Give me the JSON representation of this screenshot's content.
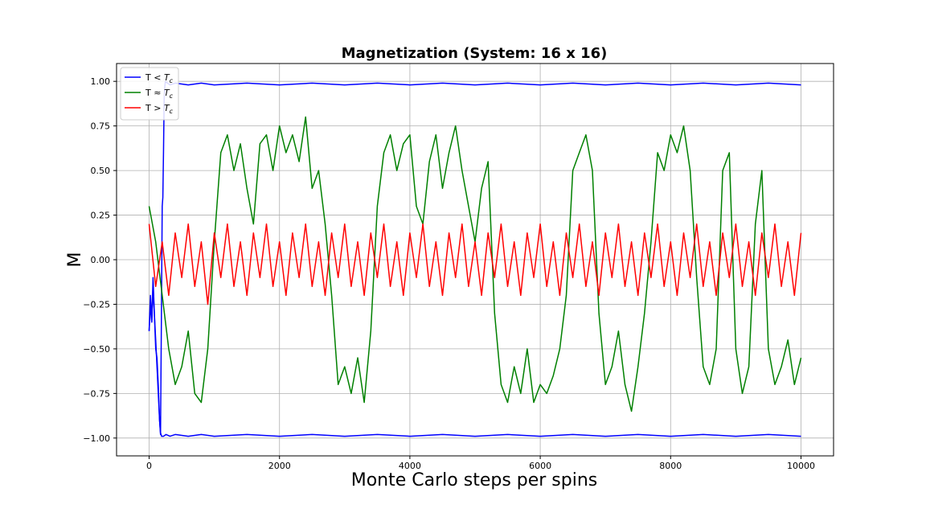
{
  "chart_data": {
    "type": "line",
    "title": "Magnetization (System: 16 x 16)",
    "xlabel": "Monte Carlo steps per spins",
    "ylabel": "M",
    "xlim": [
      -500,
      10500
    ],
    "ylim": [
      -1.1,
      1.1
    ],
    "x_ticks": [
      0,
      2000,
      4000,
      6000,
      8000,
      10000
    ],
    "x_tick_labels": [
      "0",
      "2000",
      "4000",
      "6000",
      "8000",
      "10000"
    ],
    "y_ticks": [
      -1.0,
      -0.75,
      -0.5,
      -0.25,
      0.0,
      0.25,
      0.5,
      0.75,
      1.0
    ],
    "y_tick_labels": [
      "−1.00",
      "−0.75",
      "−0.50",
      "−0.25",
      "0.00",
      "0.25",
      "0.50",
      "0.75",
      "1.00"
    ],
    "grid": true,
    "legend_position": "top-left",
    "series": [
      {
        "name": "T < Tc",
        "legend_base": "T < ",
        "legend_sub_main": "T",
        "legend_sub": "c",
        "color": "#0000ff",
        "x": [
          0,
          20,
          40,
          60,
          80,
          100,
          120,
          140,
          160,
          175,
          190,
          200,
          210,
          220,
          230,
          240,
          250,
          280,
          320,
          400,
          600,
          800,
          1000,
          1500,
          2000,
          2500,
          3000,
          3500,
          4000,
          4500,
          5000,
          5500,
          6000,
          6500,
          7000,
          7500,
          8000,
          8500,
          9000,
          9500,
          10000
        ],
        "values": [
          -0.4,
          -0.2,
          -0.35,
          -0.1,
          -0.3,
          -0.5,
          -0.55,
          -0.7,
          -0.9,
          -0.98,
          -0.2,
          0.3,
          0.35,
          0.6,
          0.9,
          0.97,
          1.0,
          0.99,
          0.98,
          0.99,
          0.98,
          0.99,
          0.98,
          0.99,
          0.98,
          0.99,
          0.98,
          0.99,
          0.98,
          0.99,
          0.98,
          0.99,
          0.98,
          0.99,
          0.98,
          0.99,
          0.98,
          0.99,
          0.98,
          0.99,
          0.98
        ]
      },
      {
        "name": "T < Tc",
        "color": "#0000ff",
        "x": [
          0,
          20,
          40,
          60,
          80,
          100,
          120,
          140,
          160,
          175,
          190,
          220,
          260,
          320,
          400,
          600,
          800,
          1000,
          1500,
          2000,
          2500,
          3000,
          3500,
          4000,
          4500,
          5000,
          5500,
          6000,
          6500,
          7000,
          7500,
          8000,
          8500,
          9000,
          9500,
          10000
        ],
        "values": [
          -0.4,
          -0.25,
          -0.35,
          -0.15,
          -0.3,
          -0.45,
          -0.6,
          -0.75,
          -0.9,
          -0.97,
          -0.99,
          -0.99,
          -0.98,
          -0.99,
          -0.98,
          -0.99,
          -0.98,
          -0.99,
          -0.98,
          -0.99,
          -0.98,
          -0.99,
          -0.98,
          -0.99,
          -0.98,
          -0.99,
          -0.98,
          -0.99,
          -0.98,
          -0.99,
          -0.98,
          -0.99,
          -0.98,
          -0.99,
          -0.98,
          -0.99
        ]
      },
      {
        "name": "T ≈ Tc",
        "legend_base": "T ≈ ",
        "legend_sub_main": "T",
        "legend_sub": "c",
        "color": "#008000",
        "x": [
          0,
          100,
          200,
          300,
          400,
          500,
          600,
          700,
          800,
          900,
          1000,
          1100,
          1200,
          1300,
          1400,
          1500,
          1600,
          1700,
          1800,
          1900,
          2000,
          2100,
          2200,
          2300,
          2400,
          2500,
          2600,
          2700,
          2800,
          2900,
          3000,
          3100,
          3200,
          3300,
          3400,
          3500,
          3600,
          3700,
          3800,
          3900,
          4000,
          4100,
          4200,
          4300,
          4400,
          4500,
          4600,
          4700,
          4800,
          4900,
          5000,
          5100,
          5200,
          5300,
          5400,
          5500,
          5600,
          5700,
          5800,
          5900,
          6000,
          6100,
          6200,
          6300,
          6400,
          6500,
          6600,
          6700,
          6800,
          6900,
          7000,
          7100,
          7200,
          7300,
          7400,
          7500,
          7600,
          7700,
          7800,
          7900,
          8000,
          8100,
          8200,
          8300,
          8400,
          8500,
          8600,
          8700,
          8800,
          8900,
          9000,
          9100,
          9200,
          9300,
          9400,
          9500,
          9600,
          9700,
          9800,
          9900,
          10000
        ],
        "values": [
          0.3,
          0.1,
          -0.2,
          -0.5,
          -0.7,
          -0.6,
          -0.4,
          -0.75,
          -0.8,
          -0.5,
          0.1,
          0.6,
          0.7,
          0.5,
          0.65,
          0.4,
          0.2,
          0.65,
          0.7,
          0.5,
          0.75,
          0.6,
          0.7,
          0.55,
          0.8,
          0.4,
          0.5,
          0.2,
          -0.2,
          -0.7,
          -0.6,
          -0.75,
          -0.55,
          -0.8,
          -0.4,
          0.3,
          0.6,
          0.7,
          0.5,
          0.65,
          0.7,
          0.3,
          0.2,
          0.55,
          0.7,
          0.4,
          0.6,
          0.75,
          0.5,
          0.3,
          0.1,
          0.4,
          0.55,
          -0.3,
          -0.7,
          -0.8,
          -0.6,
          -0.75,
          -0.5,
          -0.8,
          -0.7,
          -0.75,
          -0.65,
          -0.5,
          -0.2,
          0.5,
          0.6,
          0.7,
          0.5,
          -0.3,
          -0.7,
          -0.6,
          -0.4,
          -0.7,
          -0.85,
          -0.6,
          -0.3,
          0.1,
          0.6,
          0.5,
          0.7,
          0.6,
          0.75,
          0.5,
          -0.1,
          -0.6,
          -0.7,
          -0.5,
          0.5,
          0.6,
          -0.5,
          -0.75,
          -0.6,
          0.2,
          0.5,
          -0.5,
          -0.7,
          -0.6,
          -0.45,
          -0.7,
          -0.55
        ]
      },
      {
        "name": "T > Tc",
        "legend_base": "T > ",
        "legend_sub_main": "T",
        "legend_sub": "c",
        "color": "#ff0000",
        "x": [
          0,
          100,
          200,
          300,
          400,
          500,
          600,
          700,
          800,
          900,
          1000,
          1100,
          1200,
          1300,
          1400,
          1500,
          1600,
          1700,
          1800,
          1900,
          2000,
          2100,
          2200,
          2300,
          2400,
          2500,
          2600,
          2700,
          2800,
          2900,
          3000,
          3100,
          3200,
          3300,
          3400,
          3500,
          3600,
          3700,
          3800,
          3900,
          4000,
          4100,
          4200,
          4300,
          4400,
          4500,
          4600,
          4700,
          4800,
          4900,
          5000,
          5100,
          5200,
          5300,
          5400,
          5500,
          5600,
          5700,
          5800,
          5900,
          6000,
          6100,
          6200,
          6300,
          6400,
          6500,
          6600,
          6700,
          6800,
          6900,
          7000,
          7100,
          7200,
          7300,
          7400,
          7500,
          7600,
          7700,
          7800,
          7900,
          8000,
          8100,
          8200,
          8300,
          8400,
          8500,
          8600,
          8700,
          8800,
          8900,
          9000,
          9100,
          9200,
          9300,
          9400,
          9500,
          9600,
          9700,
          9800,
          9900,
          10000
        ],
        "values": [
          0.2,
          -0.15,
          0.1,
          -0.2,
          0.15,
          -0.1,
          0.2,
          -0.15,
          0.1,
          -0.25,
          0.15,
          -0.1,
          0.2,
          -0.15,
          0.1,
          -0.2,
          0.15,
          -0.1,
          0.2,
          -0.15,
          0.1,
          -0.2,
          0.15,
          -0.1,
          0.2,
          -0.15,
          0.1,
          -0.2,
          0.15,
          -0.1,
          0.2,
          -0.15,
          0.1,
          -0.2,
          0.15,
          -0.1,
          0.2,
          -0.15,
          0.1,
          -0.2,
          0.15,
          -0.1,
          0.2,
          -0.15,
          0.1,
          -0.2,
          0.15,
          -0.1,
          0.2,
          -0.15,
          0.1,
          -0.2,
          0.15,
          -0.1,
          0.2,
          -0.15,
          0.1,
          -0.2,
          0.15,
          -0.1,
          0.2,
          -0.15,
          0.1,
          -0.2,
          0.15,
          -0.1,
          0.2,
          -0.15,
          0.1,
          -0.2,
          0.15,
          -0.1,
          0.2,
          -0.15,
          0.1,
          -0.2,
          0.15,
          -0.1,
          0.2,
          -0.15,
          0.1,
          -0.2,
          0.15,
          -0.1,
          0.2,
          -0.15,
          0.1,
          -0.2,
          0.15,
          -0.1,
          0.2,
          -0.15,
          0.1,
          -0.2,
          0.15,
          -0.1,
          0.2,
          -0.15,
          0.1,
          -0.2,
          0.15
        ]
      }
    ]
  }
}
